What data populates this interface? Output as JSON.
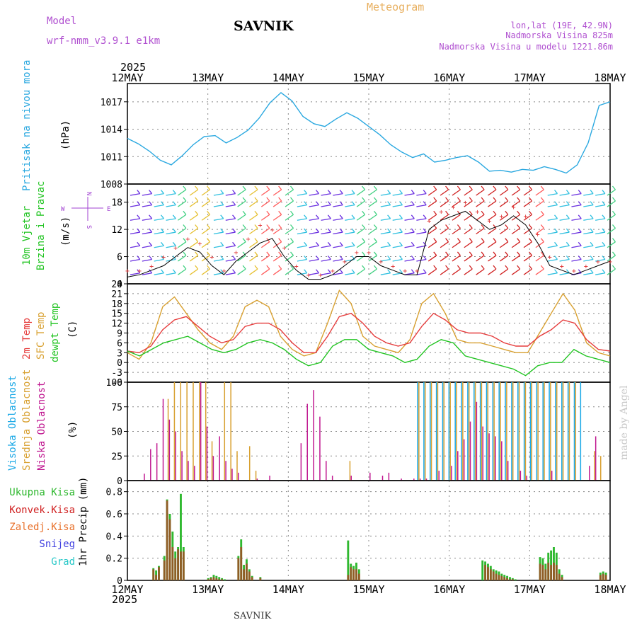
{
  "header": {
    "model_label": "Model",
    "model_name": "wrf-nmm_v3.9.1 e1km",
    "station": "SAVNIK",
    "product": "Meteogram",
    "lonlat": "lon,lat (19E, 42.9N)",
    "altitude": "Nadmorska Visina 825m",
    "model_altitude": "Nadmorska Visina u modelu 1221.86m"
  },
  "footer": {
    "station": "SAVNIK",
    "credit": "made by Angel",
    "year": "2025"
  },
  "colors": {
    "pressure": "#2aa8e0",
    "temp2m": "#e63c3c",
    "sfc_temp": "#d8a030",
    "dewpoint": "#22c422",
    "cloud_high": "#1aa8e6",
    "cloud_mid": "#d8a030",
    "cloud_low": "#c01890",
    "precip_total": "#2fb82f",
    "precip_conv": "#d02020",
    "precip_frozen": "#e8702a",
    "snow": "#4040e0",
    "graupel": "#28c8c8",
    "gust": "#e03030",
    "wind_dir_label": "#a040d0",
    "header_purple": "#b050d0",
    "header_orange": "#e8b060"
  },
  "chart_data": [
    {
      "type": "line",
      "name": "pressure",
      "title": "Pritisak na nivou mora",
      "ylabel": "(hPa)",
      "ylim": [
        1008,
        1019
      ],
      "yticks": [
        1008,
        1011,
        1014,
        1017
      ],
      "x_labels": [
        "12MAY",
        "13MAY",
        "14MAY",
        "15MAY",
        "16MAY",
        "17MAY",
        "18MAY"
      ],
      "step_hours": 3,
      "series": [
        {
          "values": [
            1013,
            1012.4,
            1011.6,
            1010.6,
            1010.1,
            1011.1,
            1012.3,
            1013.2,
            1013.3,
            1012.5,
            1013.1,
            1013.9,
            1015.2,
            1016.9,
            1018.0,
            1017.1,
            1015.4,
            1014.6,
            1014.3,
            1015.1,
            1015.8,
            1015.2,
            1014.3,
            1013.4,
            1012.3,
            1011.5,
            1010.9,
            1011.3,
            1010.4,
            1010.6,
            1010.9,
            1011.1,
            1010.4,
            1009.4,
            1009.5,
            1009.3,
            1009.6,
            1009.5,
            1009.9,
            1009.6,
            1009.2,
            1010.1,
            1012.5,
            1016.6,
            1017
          ]
        }
      ]
    },
    {
      "type": "bar",
      "name": "wind",
      "title": "10m Vjetar",
      "title2": "Brzina i Pravac",
      "ylabel": "(m/s)",
      "compass": [
        "N",
        "E",
        "S",
        "W"
      ],
      "ylim": [
        0,
        22
      ],
      "yticks": [
        0,
        6,
        12,
        18
      ],
      "x_labels": [
        "12MAY",
        "13MAY",
        "14MAY",
        "15MAY",
        "16MAY",
        "17MAY",
        "18MAY"
      ],
      "series": [
        {
          "name": "speed",
          "values": [
            1.5,
            2,
            3,
            4,
            6,
            8,
            7,
            4,
            2,
            5,
            7,
            9,
            10,
            6,
            3,
            1,
            1,
            2,
            4,
            6,
            6,
            4,
            3,
            2,
            2,
            12,
            14,
            15,
            16,
            14,
            12,
            13,
            15,
            13,
            9,
            4,
            3,
            2,
            3,
            4,
            5
          ]
        },
        {
          "name": "gust",
          "values": [
            3,
            3,
            4,
            6,
            8,
            10,
            9,
            6,
            3,
            7,
            10,
            13,
            12,
            8,
            4,
            2,
            2,
            3,
            5,
            7,
            7,
            5,
            4,
            3,
            3,
            14,
            16,
            17,
            18,
            16,
            14,
            15,
            17,
            15,
            11,
            6,
            4,
            3,
            4,
            5,
            5
          ]
        }
      ]
    },
    {
      "type": "line",
      "name": "temperature",
      "legend": [
        "2m Temp",
        "SFC Temp",
        "dewpt Temp"
      ],
      "ylabel": "(C)",
      "ylim": [
        -6,
        24
      ],
      "yticks": [
        -6,
        -3,
        0,
        3,
        6,
        9,
        12,
        15,
        18,
        21,
        24
      ],
      "x_labels": [
        "12MAY",
        "13MAY",
        "14MAY",
        "15MAY",
        "16MAY",
        "17MAY",
        "18MAY"
      ],
      "series": [
        {
          "name": "2m Temp",
          "values": [
            3.5,
            3,
            5,
            10,
            13,
            14,
            11,
            8,
            6,
            7,
            11,
            12,
            12,
            10,
            6,
            3,
            3,
            8,
            14,
            15,
            12,
            8,
            6,
            5,
            6,
            11,
            15,
            13,
            10,
            9,
            9,
            8,
            6,
            5,
            5,
            8,
            10,
            13,
            12,
            7,
            4,
            3.5
          ]
        },
        {
          "name": "SFC Temp",
          "values": [
            3,
            1,
            6,
            17,
            20,
            15,
            10,
            6,
            4,
            8,
            17,
            19,
            17,
            8,
            4,
            2,
            3,
            12,
            22,
            18,
            8,
            5,
            4,
            3,
            7,
            18,
            21,
            15,
            7,
            6,
            6,
            5,
            4,
            3,
            3,
            9,
            15,
            21,
            16,
            6,
            3,
            2
          ]
        },
        {
          "name": "dewpt Temp",
          "values": [
            3.5,
            2,
            4,
            6,
            7,
            8,
            6,
            4,
            3,
            4,
            6,
            7,
            6,
            4,
            1,
            -1,
            0,
            5,
            7,
            7,
            4,
            3,
            2,
            0,
            1,
            5,
            7,
            6,
            2,
            1,
            0,
            -1,
            -2,
            -4,
            -1,
            0,
            0,
            4,
            2,
            1,
            0
          ]
        }
      ]
    },
    {
      "type": "bar",
      "name": "clouds",
      "legend": [
        "Visoka Oblacnost",
        "Srednja Oblacnost",
        "Niska Oblacnost"
      ],
      "ylabel": "(%)",
      "ylim": [
        0,
        100
      ],
      "yticks": [
        0,
        25,
        50,
        75,
        100
      ],
      "x_labels": [
        "12MAY",
        "13MAY",
        "14MAY",
        "15MAY",
        "16MAY",
        "17MAY",
        "18MAY"
      ],
      "step_hours": 2,
      "series": [
        {
          "name": "Visoka Oblacnost",
          "values": [
            0,
            0,
            0,
            0,
            0,
            0,
            0,
            0,
            0,
            0,
            0,
            0,
            0,
            0,
            0,
            0,
            0,
            0,
            0,
            0,
            0,
            0,
            0,
            0,
            0,
            0,
            0,
            0,
            0,
            0,
            0,
            0,
            0,
            0,
            0,
            0,
            0,
            0,
            0,
            0,
            0,
            0,
            0,
            0,
            0,
            0,
            100,
            100,
            100,
            100,
            100,
            100,
            100,
            100,
            100,
            100,
            100,
            100,
            100,
            100,
            100,
            100,
            100,
            100,
            100,
            100,
            100,
            100,
            100,
            100,
            100,
            100,
            100,
            0,
            0,
            0,
            0
          ]
        },
        {
          "name": "Srednja Oblacnost",
          "values": [
            0,
            0,
            0,
            0,
            0,
            0,
            83,
            100,
            100,
            100,
            100,
            100,
            100,
            40,
            0,
            100,
            100,
            30,
            0,
            35,
            10,
            0,
            0,
            0,
            0,
            0,
            0,
            0,
            0,
            0,
            0,
            0,
            0,
            0,
            0,
            20,
            0,
            0,
            0,
            0,
            0,
            0,
            0,
            0,
            0,
            0,
            100,
            100,
            100,
            100,
            100,
            100,
            100,
            100,
            100,
            100,
            100,
            100,
            100,
            100,
            100,
            100,
            100,
            100,
            100,
            100,
            100,
            100,
            100,
            100,
            100,
            100,
            0,
            0,
            30,
            25,
            0
          ]
        },
        {
          "name": "Niska Oblacnost",
          "values": [
            0,
            0,
            7,
            32,
            38,
            83,
            62,
            50,
            30,
            20,
            15,
            100,
            55,
            25,
            45,
            20,
            12,
            8,
            0,
            0,
            2,
            0,
            5,
            0,
            0,
            0,
            0,
            38,
            78,
            92,
            65,
            20,
            5,
            0,
            0,
            5,
            0,
            0,
            8,
            0,
            5,
            8,
            0,
            2,
            0,
            2,
            2,
            2,
            0,
            10,
            0,
            15,
            30,
            42,
            60,
            80,
            55,
            48,
            45,
            40,
            20,
            0,
            10,
            5,
            0,
            0,
            0,
            10,
            0,
            0,
            0,
            0,
            0,
            15,
            45,
            0,
            0
          ]
        }
      ]
    },
    {
      "type": "bar",
      "name": "precipitation",
      "legend": [
        "Ukupna Kisa",
        "Konvek.Kisa",
        "Zaledj.Kisa",
        "Snijeg",
        "Grad"
      ],
      "ylabel": "1hr Precip (mm)",
      "ylim": [
        0,
        0.9
      ],
      "yticks": [
        0,
        0.2,
        0.4,
        0.6,
        0.8
      ],
      "x_labels": [
        "12MAY",
        "13MAY",
        "14MAY",
        "15MAY",
        "16MAY",
        "17MAY",
        "18MAY"
      ],
      "step_hours": 1,
      "series": [
        {
          "name": "Ukupna Kisa",
          "values": [
            0,
            0,
            0,
            0,
            0,
            0,
            0,
            0,
            0,
            0.11,
            0.09,
            0.13,
            0,
            0.22,
            0.73,
            0.6,
            0.44,
            0.26,
            0.3,
            0.78,
            0.3,
            0,
            0,
            0,
            0,
            0,
            0,
            0,
            0,
            0.02,
            0.03,
            0.05,
            0.04,
            0.03,
            0.02,
            0.01,
            0,
            0,
            0,
            0,
            0.22,
            0.37,
            0.14,
            0.19,
            0.1,
            0.04,
            0,
            0,
            0.03,
            0,
            0,
            0,
            0,
            0,
            0,
            0,
            0,
            0,
            0,
            0,
            0,
            0,
            0,
            0,
            0,
            0,
            0,
            0,
            0,
            0,
            0,
            0,
            0,
            0,
            0,
            0,
            0,
            0,
            0,
            0,
            0.36,
            0.15,
            0.13,
            0.16,
            0.1,
            0,
            0,
            0,
            0,
            0,
            0,
            0,
            0,
            0,
            0,
            0,
            0,
            0,
            0,
            0,
            0,
            0,
            0,
            0,
            0,
            0,
            0,
            0,
            0,
            0,
            0,
            0,
            0,
            0,
            0,
            0,
            0,
            0,
            0,
            0,
            0,
            0,
            0,
            0,
            0,
            0,
            0,
            0,
            0,
            0.18,
            0.17,
            0.15,
            0.13,
            0.1,
            0.09,
            0.08,
            0.06,
            0.05,
            0.04,
            0.03,
            0.02,
            0.01,
            0,
            0,
            0,
            0,
            0,
            0,
            0,
            0,
            0.21,
            0.2,
            0.15,
            0.25,
            0.27,
            0.3,
            0.25,
            0.1,
            0.05,
            0,
            0,
            0,
            0,
            0,
            0,
            0,
            0,
            0,
            0,
            0,
            0,
            0,
            0.07,
            0.08,
            0.07,
            0
          ]
        },
        {
          "name": "Konvek.Kisa",
          "values": [
            0,
            0,
            0,
            0,
            0,
            0,
            0,
            0,
            0,
            0.1,
            0.05,
            0.12,
            0,
            0.18,
            0.72,
            0.55,
            0.3,
            0.2,
            0.28,
            0.26,
            0.26,
            0,
            0,
            0,
            0,
            0,
            0,
            0,
            0,
            0.01,
            0.02,
            0.03,
            0.02,
            0.01,
            0.01,
            0,
            0,
            0,
            0,
            0,
            0.2,
            0.3,
            0.1,
            0.15,
            0.08,
            0.03,
            0,
            0,
            0.02,
            0,
            0,
            0,
            0,
            0,
            0,
            0,
            0,
            0,
            0,
            0,
            0,
            0,
            0,
            0,
            0,
            0,
            0,
            0,
            0,
            0,
            0,
            0,
            0,
            0,
            0,
            0,
            0,
            0,
            0,
            0,
            0.05,
            0.12,
            0.1,
            0.1,
            0.06,
            0,
            0,
            0,
            0,
            0,
            0,
            0,
            0,
            0,
            0,
            0,
            0,
            0,
            0,
            0,
            0,
            0,
            0,
            0,
            0,
            0,
            0,
            0,
            0,
            0,
            0,
            0,
            0,
            0,
            0,
            0,
            0,
            0,
            0,
            0,
            0,
            0,
            0,
            0,
            0,
            0,
            0,
            0,
            0,
            0,
            0.14,
            0.12,
            0.1,
            0.08,
            0.06,
            0.05,
            0.04,
            0.03,
            0.02,
            0.01,
            0.01,
            0,
            0,
            0,
            0,
            0,
            0,
            0,
            0,
            0,
            0.15,
            0.14,
            0.1,
            0.16,
            0.14,
            0.16,
            0.14,
            0.06,
            0.03,
            0,
            0,
            0,
            0,
            0,
            0,
            0,
            0,
            0,
            0,
            0,
            0,
            0,
            0.05,
            0.06,
            0.05,
            0
          ]
        }
      ]
    }
  ]
}
